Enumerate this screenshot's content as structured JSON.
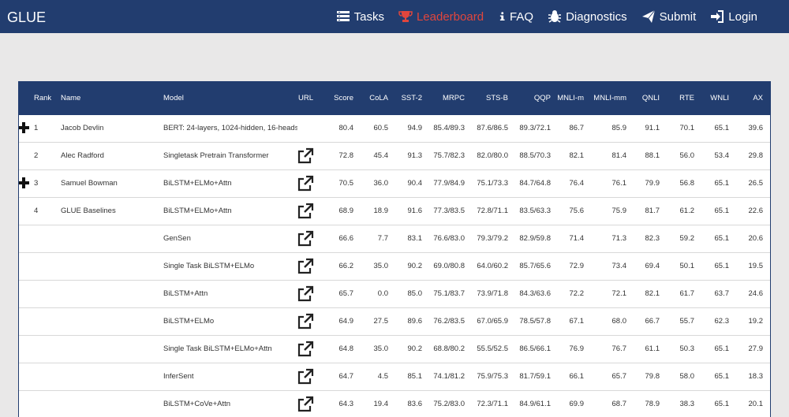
{
  "brand": "GLUE",
  "nav": [
    {
      "label": "Tasks",
      "icon": "tasks-icon"
    },
    {
      "label": "Leaderboard",
      "icon": "trophy-icon",
      "active": true
    },
    {
      "label": "FAQ",
      "icon": "info-icon"
    },
    {
      "label": "Diagnostics",
      "icon": "bug-icon"
    },
    {
      "label": "Submit",
      "icon": "paper-plane-icon"
    },
    {
      "label": "Login",
      "icon": "sign-in-icon"
    }
  ],
  "colors": {
    "navbar": "#223d6f",
    "active_nav": "#e0463d",
    "page_bg": "#e9e8e8"
  },
  "table": {
    "headers": [
      "Rank",
      "Name",
      "Model",
      "URL",
      "Score",
      "CoLA",
      "SST-2",
      "MRPC",
      "STS-B",
      "QQP",
      "MNLI-m",
      "MNLI-mm",
      "QNLI",
      "RTE",
      "WNLI",
      "AX"
    ],
    "rows": [
      {
        "expand": true,
        "rank": "1",
        "name": "Jacob Devlin",
        "model": "BERT: 24-layers, 1024-hidden, 16-heads",
        "link": false,
        "values": [
          "80.4",
          "60.5",
          "94.9",
          "85.4/89.3",
          "87.6/86.5",
          "89.3/72.1",
          "86.7",
          "85.9",
          "91.1",
          "70.1",
          "65.1",
          "39.6"
        ]
      },
      {
        "expand": false,
        "rank": "2",
        "name": "Alec Radford",
        "model": "Singletask Pretrain Transformer",
        "link": true,
        "values": [
          "72.8",
          "45.4",
          "91.3",
          "75.7/82.3",
          "82.0/80.0",
          "88.5/70.3",
          "82.1",
          "81.4",
          "88.1",
          "56.0",
          "53.4",
          "29.8"
        ]
      },
      {
        "expand": true,
        "rank": "3",
        "name": "Samuel Bowman",
        "model": "BiLSTM+ELMo+Attn",
        "link": true,
        "values": [
          "70.5",
          "36.0",
          "90.4",
          "77.9/84.9",
          "75.1/73.3",
          "84.7/64.8",
          "76.4",
          "76.1",
          "79.9",
          "56.8",
          "65.1",
          "26.5"
        ]
      },
      {
        "expand": false,
        "rank": "4",
        "name": "GLUE Baselines",
        "model": "BiLSTM+ELMo+Attn",
        "link": true,
        "values": [
          "68.9",
          "18.9",
          "91.6",
          "77.3/83.5",
          "72.8/71.1",
          "83.5/63.3",
          "75.6",
          "75.9",
          "81.7",
          "61.2",
          "65.1",
          "22.6"
        ]
      },
      {
        "expand": false,
        "rank": "",
        "name": "",
        "model": "GenSen",
        "link": true,
        "values": [
          "66.6",
          "7.7",
          "83.1",
          "76.6/83.0",
          "79.3/79.2",
          "82.9/59.8",
          "71.4",
          "71.3",
          "82.3",
          "59.2",
          "65.1",
          "20.6"
        ]
      },
      {
        "expand": false,
        "rank": "",
        "name": "",
        "model": "Single Task BiLSTM+ELMo",
        "link": true,
        "values": [
          "66.2",
          "35.0",
          "90.2",
          "69.0/80.8",
          "64.0/60.2",
          "85.7/65.6",
          "72.9",
          "73.4",
          "69.4",
          "50.1",
          "65.1",
          "19.5"
        ]
      },
      {
        "expand": false,
        "rank": "",
        "name": "",
        "model": "BiLSTM+Attn",
        "link": true,
        "values": [
          "65.7",
          "0.0",
          "85.0",
          "75.1/83.7",
          "73.9/71.8",
          "84.3/63.6",
          "72.2",
          "72.1",
          "82.1",
          "61.7",
          "63.7",
          "24.6"
        ]
      },
      {
        "expand": false,
        "rank": "",
        "name": "",
        "model": "BiLSTM+ELMo",
        "link": true,
        "values": [
          "64.9",
          "27.5",
          "89.6",
          "76.2/83.5",
          "67.0/65.9",
          "78.5/57.8",
          "67.1",
          "68.0",
          "66.7",
          "55.7",
          "62.3",
          "19.2"
        ]
      },
      {
        "expand": false,
        "rank": "",
        "name": "",
        "model": "Single Task BiLSTM+ELMo+Attn",
        "link": true,
        "values": [
          "64.8",
          "35.0",
          "90.2",
          "68.8/80.2",
          "55.5/52.5",
          "86.5/66.1",
          "76.9",
          "76.7",
          "61.1",
          "50.3",
          "65.1",
          "27.9"
        ]
      },
      {
        "expand": false,
        "rank": "",
        "name": "",
        "model": "InferSent",
        "link": true,
        "values": [
          "64.7",
          "4.5",
          "85.1",
          "74.1/81.2",
          "75.9/75.3",
          "81.7/59.1",
          "66.1",
          "65.7",
          "79.8",
          "58.0",
          "65.1",
          "18.3"
        ]
      },
      {
        "expand": false,
        "rank": "",
        "name": "",
        "model": "BiLSTM+CoVe+Attn",
        "link": true,
        "values": [
          "64.3",
          "19.4",
          "83.6",
          "75.2/83.0",
          "72.3/71.1",
          "84.9/61.1",
          "69.9",
          "68.7",
          "78.9",
          "38.3",
          "65.1",
          "20.1"
        ]
      }
    ]
  }
}
